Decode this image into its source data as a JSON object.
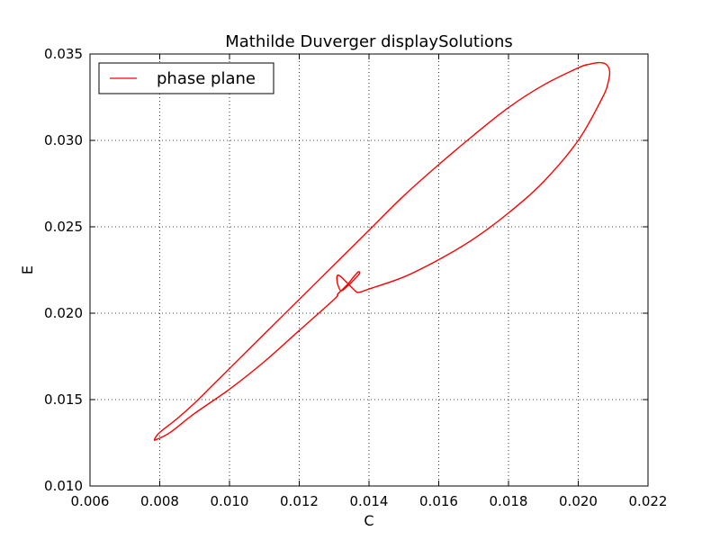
{
  "chart_data": {
    "type": "line",
    "title": "Mathilde Duverger displaySolutions",
    "xlabel": "C",
    "ylabel": "E",
    "xlim": [
      0.006,
      0.022
    ],
    "ylim": [
      0.01,
      0.035
    ],
    "xticks": [
      "0.006",
      "0.008",
      "0.010",
      "0.012",
      "0.014",
      "0.016",
      "0.018",
      "0.020",
      "0.022"
    ],
    "yticks": [
      "0.010",
      "0.015",
      "0.020",
      "0.025",
      "0.030",
      "0.035"
    ],
    "grid": true,
    "legend_position": "top-left",
    "series": [
      {
        "name": "phase plane",
        "color": "#ff0000",
        "x": [
          0.013,
          0.012,
          0.011,
          0.01,
          0.009,
          0.0083,
          0.00792,
          0.00785,
          0.008,
          0.0085,
          0.009,
          0.0095,
          0.01,
          0.011,
          0.012,
          0.013,
          0.014,
          0.015,
          0.016,
          0.017,
          0.018,
          0.019,
          0.02,
          0.0203,
          0.0206,
          0.0208,
          0.0209,
          0.02085,
          0.0207,
          0.02,
          0.019,
          0.018,
          0.017,
          0.016,
          0.015,
          0.014,
          0.0137,
          0.0136,
          0.0135,
          0.0134,
          0.0133,
          0.0132,
          0.01312,
          0.01308,
          0.0131,
          0.0132,
          0.0134,
          0.0136,
          0.01373,
          0.0137,
          0.0136,
          0.0134,
          0.0132,
          0.0131,
          0.013
        ],
        "y": [
          0.0208,
          0.019,
          0.0172,
          0.0156,
          0.0142,
          0.0131,
          0.0127,
          0.0127,
          0.0131,
          0.0139,
          0.0148,
          0.0158,
          0.0168,
          0.0188,
          0.0208,
          0.0228,
          0.0248,
          0.0268,
          0.0286,
          0.0303,
          0.0319,
          0.0332,
          0.0342,
          0.0344,
          0.0345,
          0.0344,
          0.034,
          0.0333,
          0.0325,
          0.03,
          0.0276,
          0.0258,
          0.0243,
          0.0231,
          0.0221,
          0.0214,
          0.0212,
          0.0213,
          0.0215,
          0.0217,
          0.0219,
          0.0221,
          0.0222,
          0.0221,
          0.0217,
          0.0213,
          0.0216,
          0.022,
          0.0223,
          0.0224,
          0.0222,
          0.0217,
          0.0213,
          0.0211,
          0.0208
        ]
      }
    ]
  }
}
